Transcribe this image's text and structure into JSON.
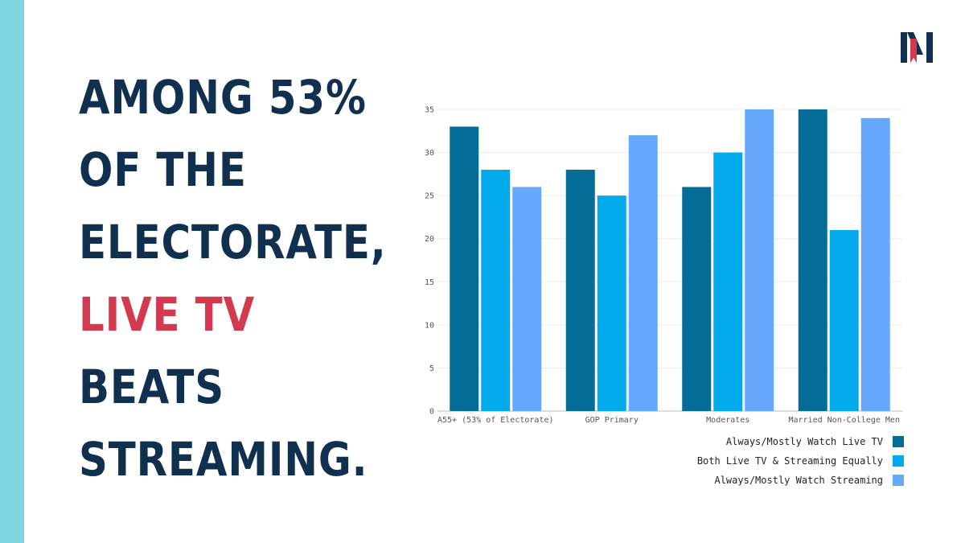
{
  "colors": {
    "stripe": "#7fd5e0",
    "headline": "#11304f",
    "highlight": "#d33a50",
    "grid": "#ececec",
    "axis": "#bbbbbb",
    "logo_navy": "#11304f",
    "logo_red": "#d33a50"
  },
  "headline": {
    "lines": [
      {
        "text": "AMONG 53%",
        "highlight": false
      },
      {
        "text": "OF THE",
        "highlight": false
      },
      {
        "text": "ELECTORATE,",
        "highlight": false
      },
      {
        "text": "LIVE TV",
        "highlight": true
      },
      {
        "text": "BEATS",
        "highlight": false
      },
      {
        "text": "STREAMING.",
        "highlight": false
      }
    ]
  },
  "logo": {
    "icon": "nm-monogram-icon"
  },
  "chart_data": {
    "type": "bar",
    "categories": [
      "A55+ (53% of Electorate)",
      "GOP Primary",
      "Moderates",
      "Married Non-College Men"
    ],
    "series": [
      {
        "name": "Always/Mostly Watch Live TV",
        "color": "#056b97",
        "values": [
          33,
          28,
          26,
          35
        ]
      },
      {
        "name": "Both Live TV & Streaming Equally",
        "color": "#03aaeb",
        "values": [
          28,
          25,
          30,
          21
        ]
      },
      {
        "name": "Always/Mostly Watch Streaming",
        "color": "#66a8fb",
        "values": [
          26,
          32,
          35,
          34
        ]
      }
    ],
    "yticks": [
      0,
      5,
      10,
      15,
      20,
      25,
      30,
      35
    ],
    "ylim": [
      0,
      35
    ],
    "grid": true,
    "legend_position": "bottom-right"
  }
}
